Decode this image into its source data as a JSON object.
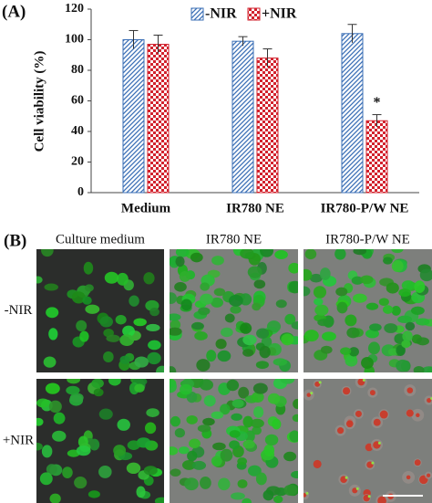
{
  "panel_a_label": "(A)",
  "chart_data": {
    "type": "bar",
    "categories": [
      "Medium",
      "IR780 NE",
      "IR780-P/W NE"
    ],
    "y_label": "Cell viability (%)",
    "ylim": [
      0,
      120
    ],
    "yticks": [
      0,
      20,
      40,
      60,
      80,
      100,
      120
    ],
    "grid": false,
    "legend": "top",
    "series": [
      {
        "name": "-NIR",
        "color": "#3b6fb6",
        "pattern": "hatch",
        "values": [
          100,
          99,
          104
        ],
        "errors": [
          6,
          3,
          6
        ]
      },
      {
        "name": "+NIR",
        "color": "#d2222d",
        "pattern": "checker",
        "values": [
          97,
          88,
          47
        ],
        "errors": [
          6,
          6,
          4
        ]
      }
    ],
    "annotation": "*"
  },
  "panel_b": {
    "label": "(B)",
    "column_labels": [
      "Culture medium",
      "IR780 NE",
      "IR780-P/W NE"
    ],
    "row_labels": [
      "-NIR",
      "+NIR"
    ]
  }
}
